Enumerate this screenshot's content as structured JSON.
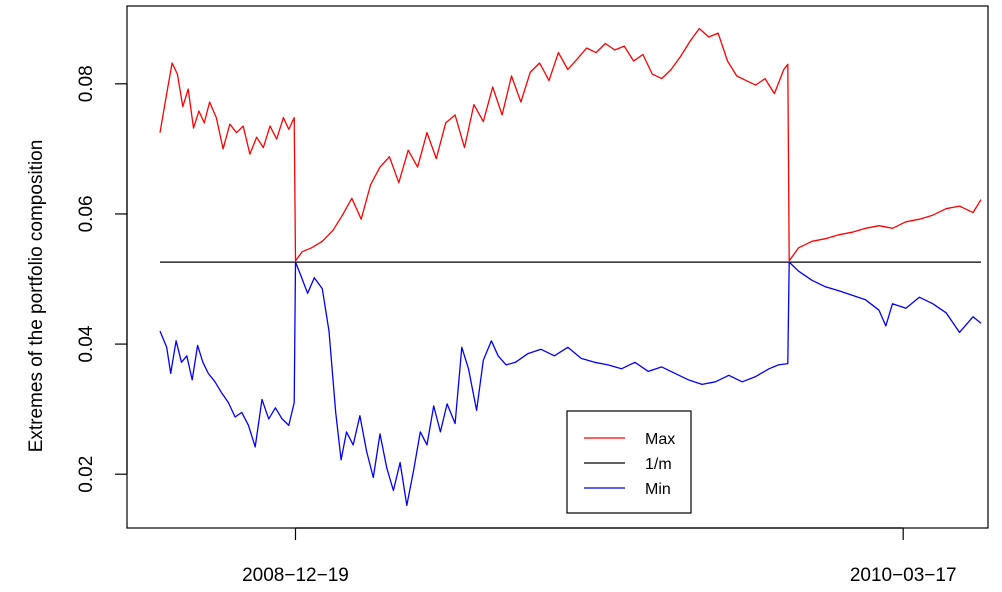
{
  "chart_data": {
    "type": "line",
    "title": "",
    "xlabel": "",
    "ylabel": "Extremes of the portfolio composition",
    "ylim": [
      0.0145,
      0.0895
    ],
    "x_range": [
      "2008-09-09",
      "2010-05-14"
    ],
    "x_ticks": [
      "2008-12-19",
      "2010-03-17"
    ],
    "y_ticks": [
      0.02,
      0.04,
      0.06,
      0.08
    ],
    "y_tick_labels": [
      "0.02",
      "0.04",
      "0.06",
      "0.08"
    ],
    "grid": false,
    "legend": {
      "placement": "bottom-center",
      "entries": [
        "Max",
        "1/m",
        "Min"
      ]
    },
    "series": [
      {
        "name": "Max",
        "color": "#ff0000",
        "points": [
          [
            "2008-09-09",
            0.0725
          ],
          [
            "2008-09-14",
            0.0785
          ],
          [
            "2008-09-18",
            0.0832
          ],
          [
            "2008-09-22",
            0.0815
          ],
          [
            "2008-09-26",
            0.0765
          ],
          [
            "2008-09-30",
            0.0792
          ],
          [
            "2008-10-04",
            0.0732
          ],
          [
            "2008-10-08",
            0.0758
          ],
          [
            "2008-10-12",
            0.074
          ],
          [
            "2008-10-16",
            0.0772
          ],
          [
            "2008-10-21",
            0.0748
          ],
          [
            "2008-10-26",
            0.07
          ],
          [
            "2008-10-31",
            0.0738
          ],
          [
            "2008-11-05",
            0.0725
          ],
          [
            "2008-11-10",
            0.0735
          ],
          [
            "2008-11-15",
            0.0692
          ],
          [
            "2008-11-20",
            0.0718
          ],
          [
            "2008-11-25",
            0.0702
          ],
          [
            "2008-11-30",
            0.0735
          ],
          [
            "2008-12-05",
            0.0715
          ],
          [
            "2008-12-10",
            0.0748
          ],
          [
            "2008-12-14",
            0.073
          ],
          [
            "2008-12-18",
            0.0748
          ],
          [
            "2008-12-19",
            0.0528
          ],
          [
            "2008-12-24",
            0.0542
          ],
          [
            "2008-12-31",
            0.0548
          ],
          [
            "2009-01-08",
            0.0558
          ],
          [
            "2009-01-16",
            0.0575
          ],
          [
            "2009-01-23",
            0.0598
          ],
          [
            "2009-01-30",
            0.0624
          ],
          [
            "2009-02-06",
            0.0592
          ],
          [
            "2009-02-13",
            0.0645
          ],
          [
            "2009-02-20",
            0.0672
          ],
          [
            "2009-02-27",
            0.0688
          ],
          [
            "2009-03-06",
            0.0648
          ],
          [
            "2009-03-13",
            0.0698
          ],
          [
            "2009-03-20",
            0.0672
          ],
          [
            "2009-03-27",
            0.0725
          ],
          [
            "2009-04-03",
            0.0685
          ],
          [
            "2009-04-10",
            0.074
          ],
          [
            "2009-04-17",
            0.0752
          ],
          [
            "2009-04-24",
            0.0702
          ],
          [
            "2009-05-01",
            0.0768
          ],
          [
            "2009-05-08",
            0.0742
          ],
          [
            "2009-05-15",
            0.0795
          ],
          [
            "2009-05-22",
            0.0752
          ],
          [
            "2009-05-29",
            0.0812
          ],
          [
            "2009-06-05",
            0.0772
          ],
          [
            "2009-06-12",
            0.0818
          ],
          [
            "2009-06-19",
            0.0832
          ],
          [
            "2009-06-26",
            0.0805
          ],
          [
            "2009-07-03",
            0.0848
          ],
          [
            "2009-07-10",
            0.0822
          ],
          [
            "2009-07-17",
            0.0838
          ],
          [
            "2009-07-24",
            0.0855
          ],
          [
            "2009-07-31",
            0.0848
          ],
          [
            "2009-08-07",
            0.0862
          ],
          [
            "2009-08-14",
            0.0852
          ],
          [
            "2009-08-21",
            0.0858
          ],
          [
            "2009-08-28",
            0.0835
          ],
          [
            "2009-09-04",
            0.0845
          ],
          [
            "2009-09-11",
            0.0815
          ],
          [
            "2009-09-18",
            0.0808
          ],
          [
            "2009-09-25",
            0.0822
          ],
          [
            "2009-10-02",
            0.0842
          ],
          [
            "2009-10-09",
            0.0865
          ],
          [
            "2009-10-16",
            0.0885
          ],
          [
            "2009-10-23",
            0.0872
          ],
          [
            "2009-10-30",
            0.0878
          ],
          [
            "2009-11-06",
            0.0835
          ],
          [
            "2009-11-13",
            0.0812
          ],
          [
            "2009-11-20",
            0.0805
          ],
          [
            "2009-11-27",
            0.0798
          ],
          [
            "2009-12-04",
            0.0808
          ],
          [
            "2009-12-11",
            0.0785
          ],
          [
            "2009-12-18",
            0.0822
          ],
          [
            "2009-12-21",
            0.083
          ],
          [
            "2009-12-22",
            0.0528
          ],
          [
            "2009-12-29",
            0.0548
          ],
          [
            "2010-01-08",
            0.0558
          ],
          [
            "2010-01-18",
            0.0562
          ],
          [
            "2010-01-28",
            0.0568
          ],
          [
            "2010-02-07",
            0.0572
          ],
          [
            "2010-02-17",
            0.0578
          ],
          [
            "2010-02-27",
            0.0582
          ],
          [
            "2010-03-09",
            0.0578
          ],
          [
            "2010-03-19",
            0.0588
          ],
          [
            "2010-03-29",
            0.0592
          ],
          [
            "2010-04-08",
            0.0598
          ],
          [
            "2010-04-18",
            0.0608
          ],
          [
            "2010-04-28",
            0.0612
          ],
          [
            "2010-05-08",
            0.0602
          ],
          [
            "2010-05-14",
            0.0622
          ]
        ]
      },
      {
        "name": "1/m",
        "color": "#000000",
        "points": [
          [
            "2008-09-09",
            0.0526
          ],
          [
            "2010-05-14",
            0.0526
          ]
        ]
      },
      {
        "name": "Min",
        "color": "#0000ff",
        "points": [
          [
            "2008-09-09",
            0.042
          ],
          [
            "2008-09-14",
            0.0395
          ],
          [
            "2008-09-17",
            0.0355
          ],
          [
            "2008-09-21",
            0.0405
          ],
          [
            "2008-09-25",
            0.0372
          ],
          [
            "2008-09-29",
            0.0382
          ],
          [
            "2008-10-03",
            0.0345
          ],
          [
            "2008-10-07",
            0.0398
          ],
          [
            "2008-10-11",
            0.0372
          ],
          [
            "2008-10-15",
            0.0355
          ],
          [
            "2008-10-20",
            0.0342
          ],
          [
            "2008-10-25",
            0.0325
          ],
          [
            "2008-10-30",
            0.031
          ],
          [
            "2008-11-04",
            0.0288
          ],
          [
            "2008-11-09",
            0.0295
          ],
          [
            "2008-11-14",
            0.0275
          ],
          [
            "2008-11-19",
            0.0242
          ],
          [
            "2008-11-24",
            0.0315
          ],
          [
            "2008-11-29",
            0.0285
          ],
          [
            "2008-12-04",
            0.0302
          ],
          [
            "2008-12-09",
            0.0285
          ],
          [
            "2008-12-14",
            0.0275
          ],
          [
            "2008-12-18",
            0.031
          ],
          [
            "2008-12-19",
            0.0526
          ],
          [
            "2008-12-23",
            0.0505
          ],
          [
            "2008-12-28",
            0.0478
          ],
          [
            "2009-01-02",
            0.0502
          ],
          [
            "2009-01-08",
            0.0485
          ],
          [
            "2009-01-13",
            0.042
          ],
          [
            "2009-01-18",
            0.0295
          ],
          [
            "2009-01-22",
            0.0222
          ],
          [
            "2009-01-26",
            0.0265
          ],
          [
            "2009-01-31",
            0.0245
          ],
          [
            "2009-02-05",
            0.029
          ],
          [
            "2009-02-10",
            0.0235
          ],
          [
            "2009-02-15",
            0.0195
          ],
          [
            "2009-02-20",
            0.0262
          ],
          [
            "2009-02-25",
            0.021
          ],
          [
            "2009-03-02",
            0.0175
          ],
          [
            "2009-03-07",
            0.0218
          ],
          [
            "2009-03-12",
            0.0152
          ],
          [
            "2009-03-17",
            0.0205
          ],
          [
            "2009-03-22",
            0.0265
          ],
          [
            "2009-03-27",
            0.0245
          ],
          [
            "2009-04-01",
            0.0305
          ],
          [
            "2009-04-06",
            0.0265
          ],
          [
            "2009-04-11",
            0.0308
          ],
          [
            "2009-04-17",
            0.0278
          ],
          [
            "2009-04-22",
            0.0395
          ],
          [
            "2009-04-27",
            0.0362
          ],
          [
            "2009-05-03",
            0.0298
          ],
          [
            "2009-05-08",
            0.0375
          ],
          [
            "2009-05-14",
            0.0405
          ],
          [
            "2009-05-19",
            0.0382
          ],
          [
            "2009-05-25",
            0.0368
          ],
          [
            "2009-06-01",
            0.0372
          ],
          [
            "2009-06-10",
            0.0385
          ],
          [
            "2009-06-20",
            0.0392
          ],
          [
            "2009-06-30",
            0.0382
          ],
          [
            "2009-07-10",
            0.0395
          ],
          [
            "2009-07-20",
            0.0378
          ],
          [
            "2009-07-30",
            0.0372
          ],
          [
            "2009-08-09",
            0.0368
          ],
          [
            "2009-08-19",
            0.0362
          ],
          [
            "2009-08-29",
            0.0372
          ],
          [
            "2009-09-08",
            0.0358
          ],
          [
            "2009-09-18",
            0.0365
          ],
          [
            "2009-09-28",
            0.0355
          ],
          [
            "2009-10-08",
            0.0345
          ],
          [
            "2009-10-18",
            0.0338
          ],
          [
            "2009-10-28",
            0.0342
          ],
          [
            "2009-11-07",
            0.0352
          ],
          [
            "2009-11-17",
            0.0342
          ],
          [
            "2009-11-27",
            0.035
          ],
          [
            "2009-12-07",
            0.0362
          ],
          [
            "2009-12-14",
            0.0368
          ],
          [
            "2009-12-21",
            0.037
          ],
          [
            "2009-12-22",
            0.0526
          ],
          [
            "2009-12-29",
            0.0512
          ],
          [
            "2010-01-08",
            0.0498
          ],
          [
            "2010-01-18",
            0.0488
          ],
          [
            "2010-01-28",
            0.0482
          ],
          [
            "2010-02-07",
            0.0475
          ],
          [
            "2010-02-17",
            0.0468
          ],
          [
            "2010-02-27",
            0.0452
          ],
          [
            "2010-03-04",
            0.0428
          ],
          [
            "2010-03-09",
            0.0462
          ],
          [
            "2010-03-19",
            0.0455
          ],
          [
            "2010-03-29",
            0.0472
          ],
          [
            "2010-04-08",
            0.0462
          ],
          [
            "2010-04-18",
            0.0448
          ],
          [
            "2010-04-28",
            0.0418
          ],
          [
            "2010-05-08",
            0.0442
          ],
          [
            "2010-05-14",
            0.0432
          ]
        ]
      }
    ]
  }
}
